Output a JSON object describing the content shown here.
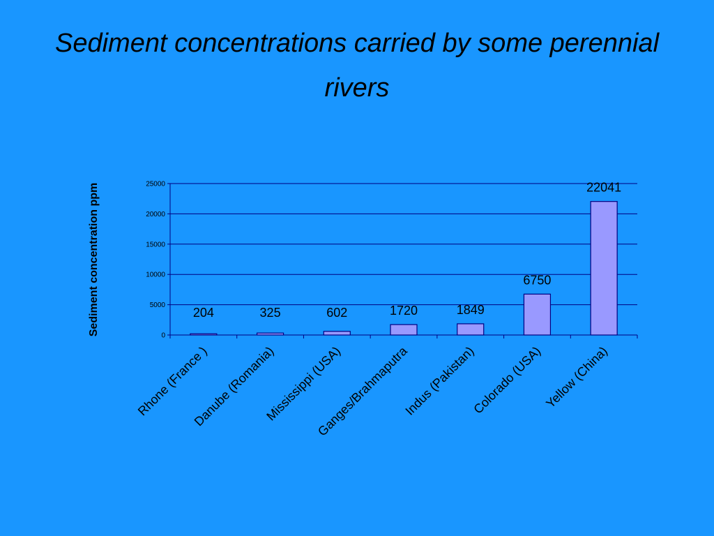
{
  "slide": {
    "title": "Sediment concentrations carried by some perennial rivers"
  },
  "colors": {
    "background": "#1996ff",
    "bar_fill": "#9999ff",
    "bar_stroke": "#000080",
    "gridline": "#000080",
    "text": "#000000"
  },
  "chart_data": {
    "type": "bar",
    "title": "",
    "xlabel": "",
    "ylabel": "Sediment concentration ppm",
    "categories": [
      "Rhone (France )",
      "Danube (Romania)",
      "Mississippi (USA)",
      "Ganges/Brahmaputra",
      "Indus (Pakistan)",
      "Colorado (USA)",
      "Yellow (China)"
    ],
    "values": [
      204,
      325,
      602,
      1720,
      1849,
      6750,
      22041
    ],
    "data_labels": [
      "204",
      "325",
      "602",
      "1720",
      "1849",
      "6750",
      "22041"
    ],
    "ylim": [
      0,
      25000
    ],
    "yticks": [
      0,
      5000,
      10000,
      15000,
      20000,
      25000
    ],
    "ytick_labels": [
      "0",
      "5000",
      "10000",
      "15000",
      "20000",
      "25000"
    ],
    "grid": true,
    "legend": "none"
  }
}
